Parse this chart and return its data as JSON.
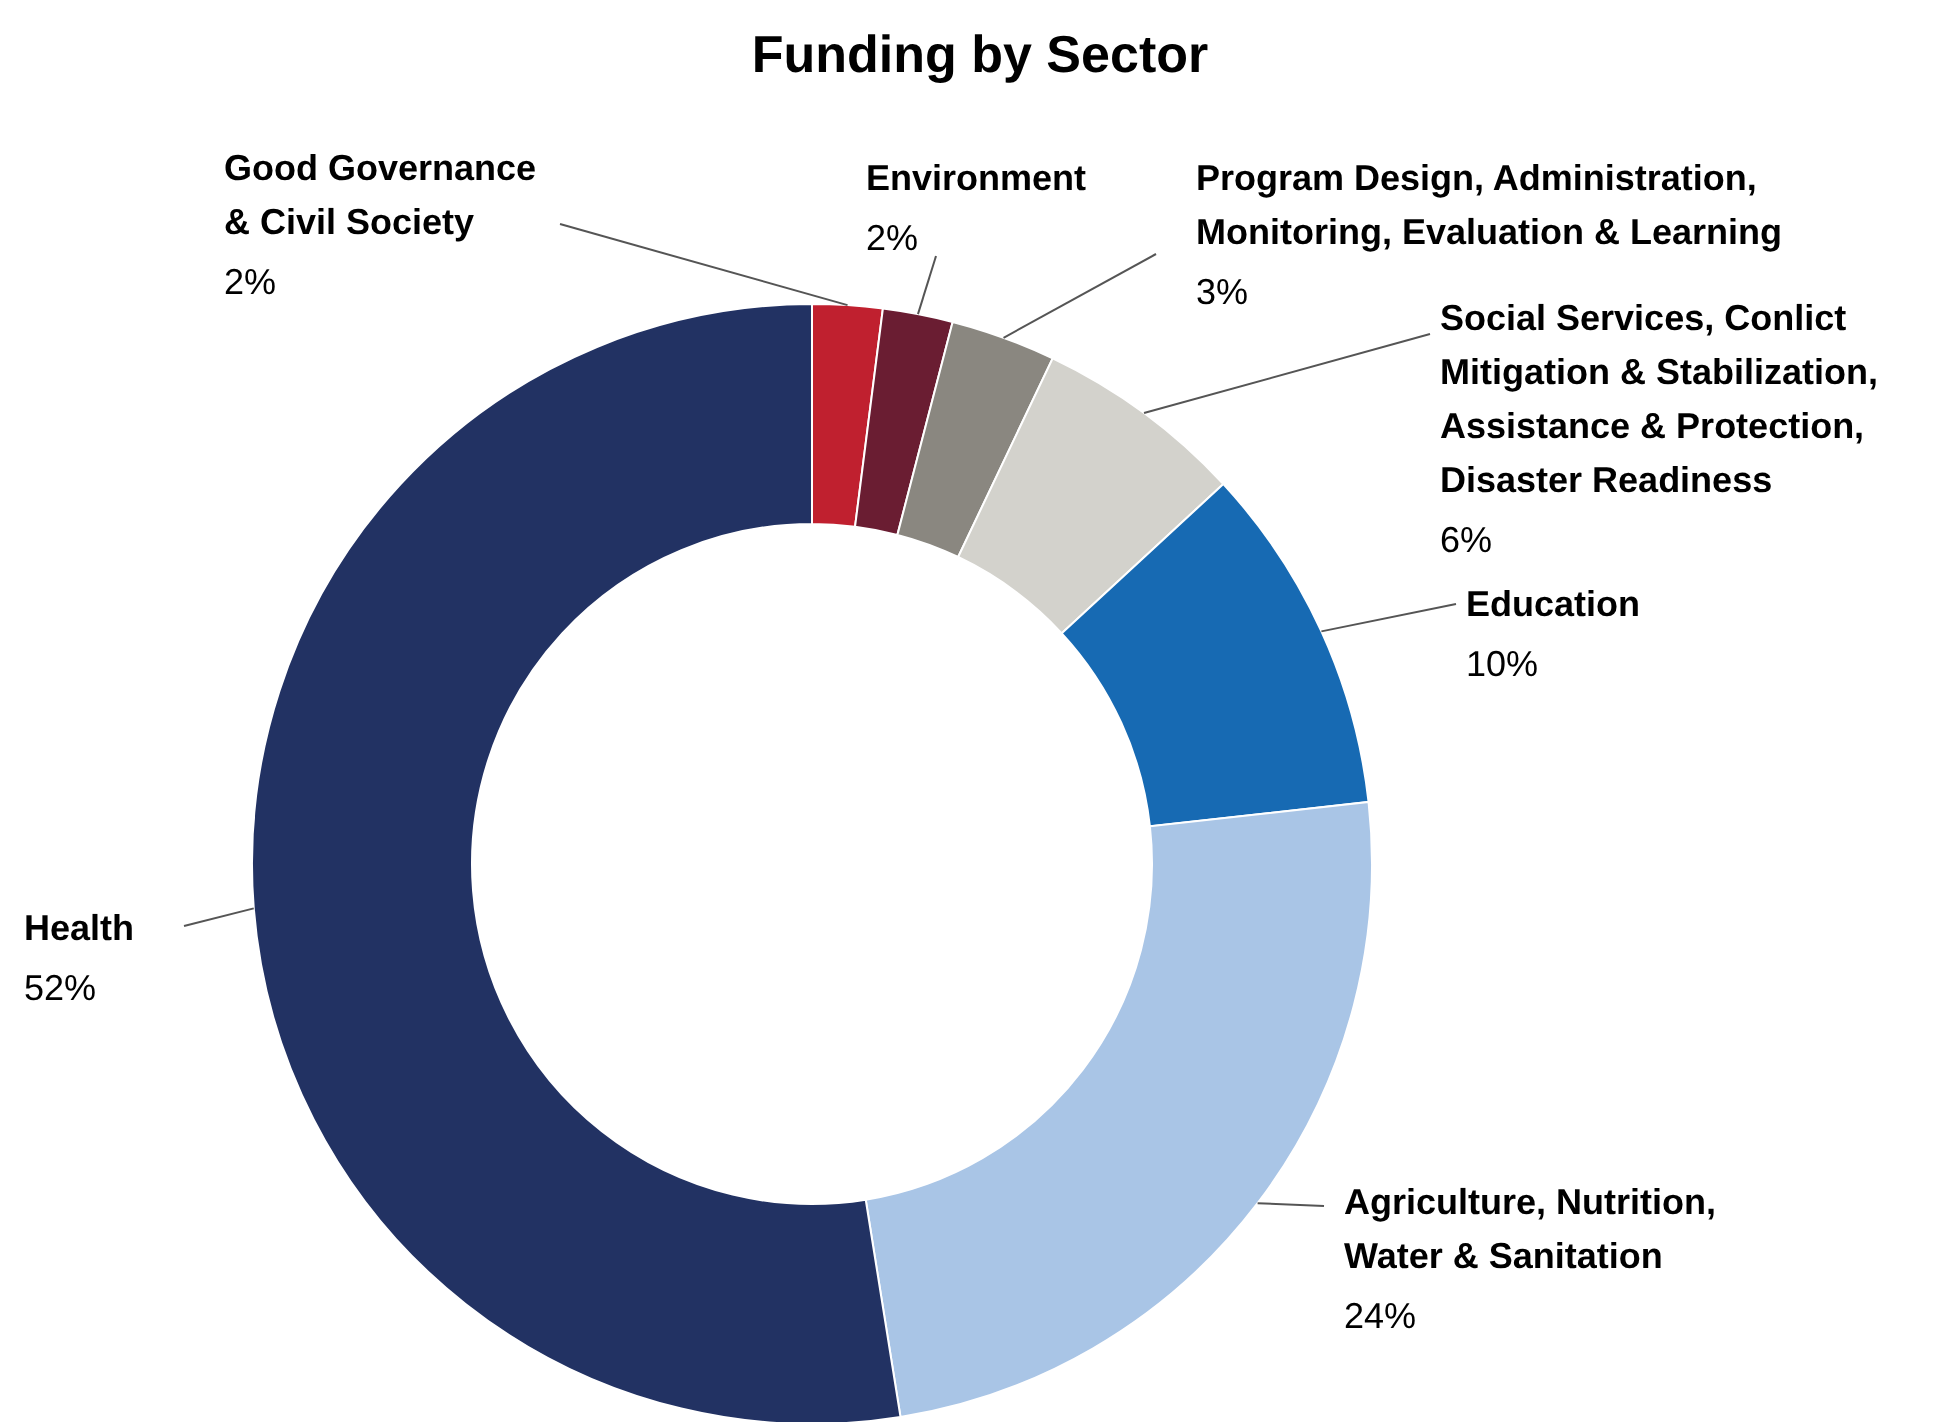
{
  "chart_data": {
    "type": "donut",
    "title": "Funding by Sector",
    "categories": [
      "Good Governance & Civil Society",
      "Environment",
      "Program Design, Administration, Monitoring, Evaluation & Learning",
      "Social Services, Conlict Mitigation & Stabilization, Assistance & Protection, Disaster Readiness",
      "Education",
      "Agriculture, Nutrition, Water & Sanitation",
      "Health"
    ],
    "values": [
      2,
      2,
      3,
      6,
      10,
      24,
      52
    ],
    "value_labels": [
      "2%",
      "2%",
      "3%",
      "6%",
      "10%",
      "24%",
      "52%"
    ],
    "colors": [
      "#c0202f",
      "#6a1d32",
      "#8a8780",
      "#d3d2cc",
      "#176ab3",
      "#a9c5e6",
      "#223263"
    ]
  }
}
